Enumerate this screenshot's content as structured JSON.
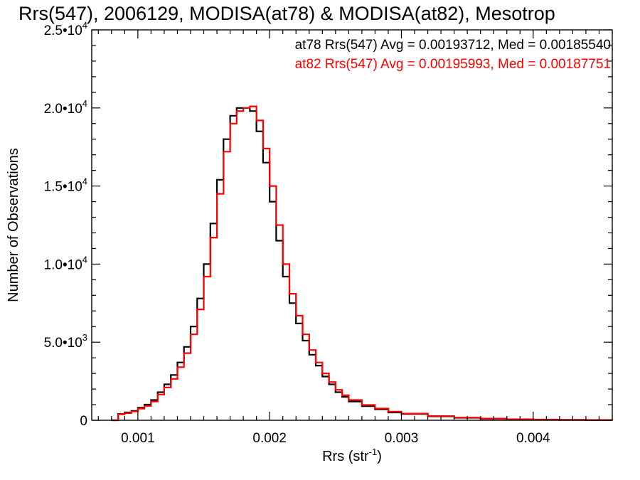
{
  "chart_data": {
    "type": "line",
    "title": "Rrs(547), 2006129, MODISA(at78) & MODISA(at82), Mesotrop",
    "xlabel": "Rrs (str",
    "xlabel_sup": "-1",
    "xlabel_end": ")",
    "ylabel": "Number of Observations",
    "xlim": [
      0.00065,
      0.0046
    ],
    "ylim": [
      0,
      25000
    ],
    "grid": false,
    "legend_position": "top-right",
    "x_ticks": [
      {
        "value": 0.001,
        "label": "0.001"
      },
      {
        "value": 0.002,
        "label": "0.002"
      },
      {
        "value": 0.003,
        "label": "0.003"
      },
      {
        "value": 0.004,
        "label": "0.004"
      }
    ],
    "y_ticks": [
      {
        "value": 0,
        "mant": "0",
        "exp": ""
      },
      {
        "value": 5000,
        "mant": "5.0•10",
        "exp": "3"
      },
      {
        "value": 10000,
        "mant": "1.0•10",
        "exp": "4"
      },
      {
        "value": 15000,
        "mant": "1.5•10",
        "exp": "4"
      },
      {
        "value": 20000,
        "mant": "2.0•10",
        "exp": "4"
      },
      {
        "value": 25000,
        "mant": "2.5•10",
        "exp": "4"
      }
    ],
    "series": [
      {
        "name": "at78",
        "legend_text": "at78 Rrs(547) Avg = 0.00193712, Med = 0.00185540",
        "color": "#000000",
        "points": [
          [
            0.0008,
            0
          ],
          [
            0.00085,
            400
          ],
          [
            0.0009,
            500
          ],
          [
            0.00095,
            600
          ],
          [
            0.001,
            800
          ],
          [
            0.00105,
            1000
          ],
          [
            0.0011,
            1300
          ],
          [
            0.00115,
            1800
          ],
          [
            0.0012,
            2300
          ],
          [
            0.00125,
            2900
          ],
          [
            0.0013,
            3700
          ],
          [
            0.00135,
            4700
          ],
          [
            0.0014,
            6000
          ],
          [
            0.00145,
            7800
          ],
          [
            0.0015,
            10000
          ],
          [
            0.00155,
            12600
          ],
          [
            0.0016,
            15400
          ],
          [
            0.00165,
            18000
          ],
          [
            0.0017,
            19500
          ],
          [
            0.00175,
            20000
          ],
          [
            0.0018,
            20000
          ],
          [
            0.00185,
            19800
          ],
          [
            0.0019,
            18500
          ],
          [
            0.00195,
            16500
          ],
          [
            0.002,
            14000
          ],
          [
            0.00205,
            11500
          ],
          [
            0.0021,
            9200
          ],
          [
            0.00215,
            7500
          ],
          [
            0.0022,
            6200
          ],
          [
            0.00225,
            5100
          ],
          [
            0.0023,
            4200
          ],
          [
            0.00235,
            3500
          ],
          [
            0.0024,
            2800
          ],
          [
            0.00245,
            2300
          ],
          [
            0.0025,
            1800
          ],
          [
            0.00255,
            1500
          ],
          [
            0.0026,
            1200
          ],
          [
            0.0027,
            900
          ],
          [
            0.0028,
            700
          ],
          [
            0.0029,
            500
          ],
          [
            0.003,
            400
          ],
          [
            0.0032,
            250
          ],
          [
            0.0034,
            160
          ],
          [
            0.0036,
            100
          ],
          [
            0.0038,
            60
          ],
          [
            0.004,
            40
          ],
          [
            0.0042,
            25
          ],
          [
            0.0044,
            15
          ],
          [
            0.0046,
            10
          ]
        ]
      },
      {
        "name": "at82",
        "legend_text": "at82 Rrs(547) Avg = 0.00195993, Med = 0.00187751",
        "color": "#ff0000",
        "points": [
          [
            0.0008,
            0
          ],
          [
            0.00085,
            380
          ],
          [
            0.0009,
            460
          ],
          [
            0.00095,
            560
          ],
          [
            0.001,
            740
          ],
          [
            0.00105,
            920
          ],
          [
            0.0011,
            1200
          ],
          [
            0.00115,
            1650
          ],
          [
            0.0012,
            2100
          ],
          [
            0.00125,
            2650
          ],
          [
            0.0013,
            3400
          ],
          [
            0.00135,
            4300
          ],
          [
            0.0014,
            5500
          ],
          [
            0.00145,
            7100
          ],
          [
            0.0015,
            9200
          ],
          [
            0.00155,
            11700
          ],
          [
            0.0016,
            14500
          ],
          [
            0.00165,
            17200
          ],
          [
            0.0017,
            19000
          ],
          [
            0.00175,
            19800
          ],
          [
            0.0018,
            20000
          ],
          [
            0.00185,
            20100
          ],
          [
            0.0019,
            19200
          ],
          [
            0.00195,
            17400
          ],
          [
            0.002,
            15000
          ],
          [
            0.00205,
            12500
          ],
          [
            0.0021,
            10000
          ],
          [
            0.00215,
            8100
          ],
          [
            0.0022,
            6700
          ],
          [
            0.00225,
            5500
          ],
          [
            0.0023,
            4500
          ],
          [
            0.00235,
            3700
          ],
          [
            0.0024,
            3000
          ],
          [
            0.00245,
            2450
          ],
          [
            0.0025,
            1950
          ],
          [
            0.00255,
            1600
          ],
          [
            0.0026,
            1300
          ],
          [
            0.0027,
            980
          ],
          [
            0.0028,
            750
          ],
          [
            0.0029,
            550
          ],
          [
            0.003,
            430
          ],
          [
            0.0032,
            270
          ],
          [
            0.0034,
            170
          ],
          [
            0.0036,
            110
          ],
          [
            0.0038,
            65
          ],
          [
            0.004,
            45
          ],
          [
            0.0042,
            28
          ],
          [
            0.0044,
            17
          ],
          [
            0.0046,
            12
          ]
        ]
      }
    ]
  }
}
